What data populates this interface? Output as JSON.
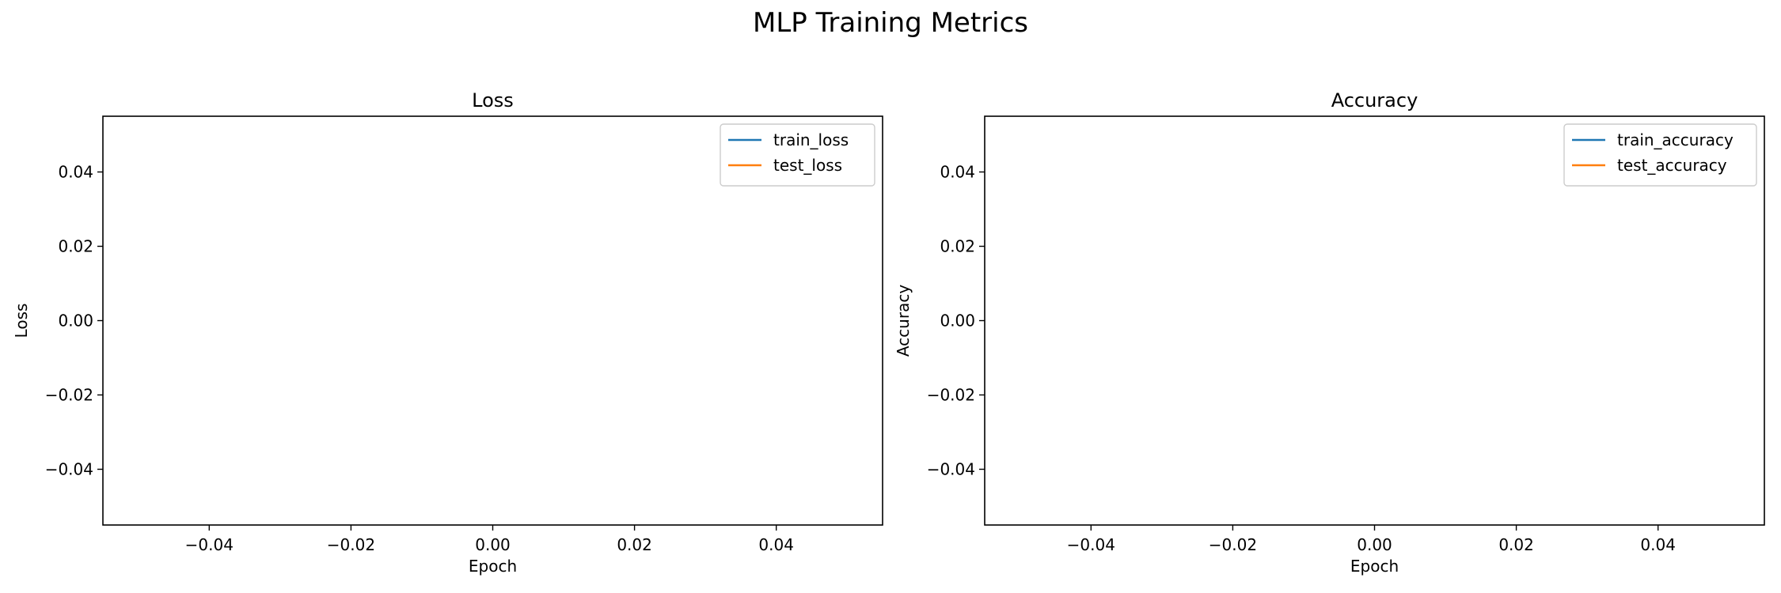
{
  "figure": {
    "suptitle": "MLP Training Metrics",
    "axis_color": "#000000",
    "background": "#ffffff"
  },
  "chart_data": [
    {
      "type": "line",
      "title": "Loss",
      "xlabel": "Epoch",
      "ylabel": "Loss",
      "xlim": [
        -0.055,
        0.055
      ],
      "ylim": [
        -0.055,
        0.055
      ],
      "xticks": [
        -0.04,
        -0.02,
        0.0,
        0.02,
        0.04
      ],
      "xtick_labels": [
        "−0.04",
        "−0.02",
        "0.00",
        "0.02",
        "0.04"
      ],
      "yticks": [
        -0.04,
        -0.02,
        0.0,
        0.02,
        0.04
      ],
      "ytick_labels": [
        "−0.04",
        "−0.02",
        "0.00",
        "0.02",
        "0.04"
      ],
      "grid": false,
      "legend_position": "top-right",
      "series": [
        {
          "name": "train_loss",
          "color": "#1f77b4",
          "x": [],
          "y": []
        },
        {
          "name": "test_loss",
          "color": "#ff7f0e",
          "x": [],
          "y": []
        }
      ]
    },
    {
      "type": "line",
      "title": "Accuracy",
      "xlabel": "Epoch",
      "ylabel": "Accuracy",
      "xlim": [
        -0.055,
        0.055
      ],
      "ylim": [
        -0.055,
        0.055
      ],
      "xticks": [
        -0.04,
        -0.02,
        0.0,
        0.02,
        0.04
      ],
      "xtick_labels": [
        "−0.04",
        "−0.02",
        "0.00",
        "0.02",
        "0.04"
      ],
      "yticks": [
        -0.04,
        -0.02,
        0.0,
        0.02,
        0.04
      ],
      "ytick_labels": [
        "−0.04",
        "−0.02",
        "0.00",
        "0.02",
        "0.04"
      ],
      "grid": false,
      "legend_position": "top-right",
      "series": [
        {
          "name": "train_accuracy",
          "color": "#1f77b4",
          "x": [],
          "y": []
        },
        {
          "name": "test_accuracy",
          "color": "#ff7f0e",
          "x": [],
          "y": []
        }
      ]
    }
  ]
}
